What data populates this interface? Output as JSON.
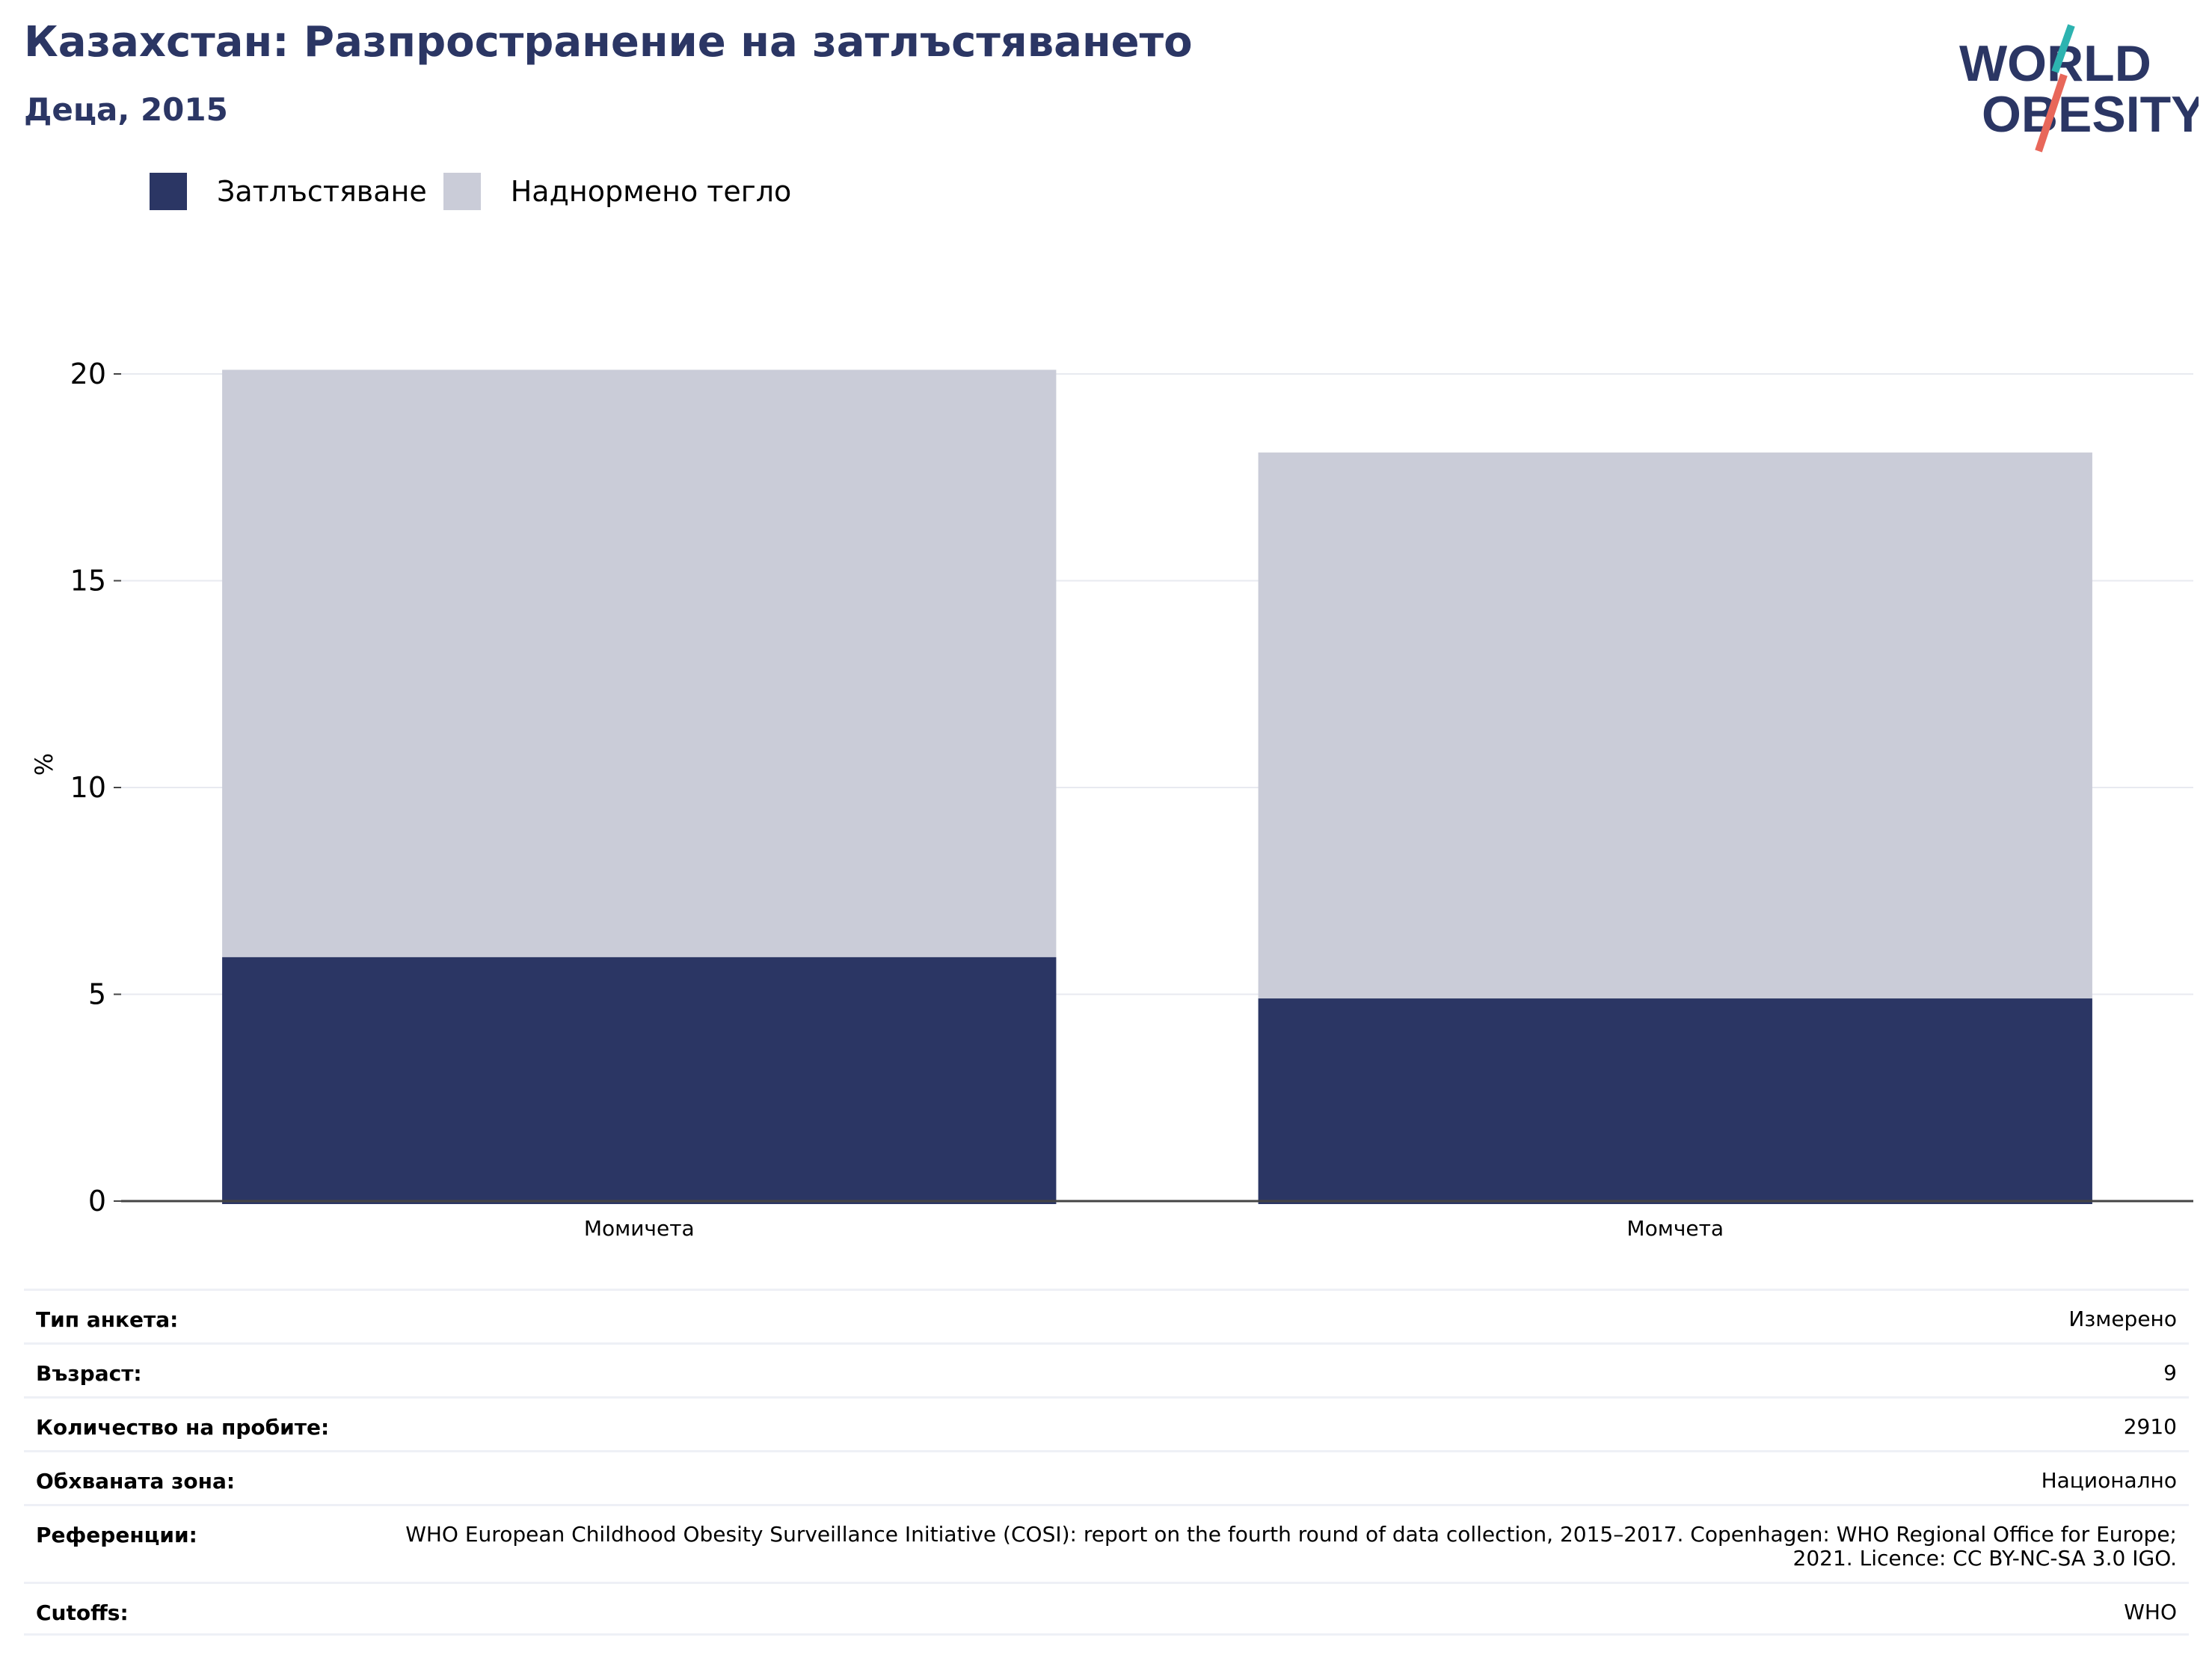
{
  "header": {
    "title": "Казахстан: Разпространение на затлъстяването",
    "subtitle": "Деца, 2015"
  },
  "logo": {
    "line1": "WORLD",
    "line2": "OBESITY"
  },
  "colors": {
    "obesity": "#2b3664",
    "overweight": "#caccd8",
    "title": "#2b3664",
    "logo_teal": "#2db3b0",
    "logo_coral": "#e8675a",
    "grid": "#e8eaf0"
  },
  "legend": {
    "obesity": "Затлъстяване",
    "overweight": "Наднормено тегло"
  },
  "chart_data": {
    "type": "bar",
    "stacked": true,
    "categories": [
      "Момичета",
      "Момчета"
    ],
    "series": [
      {
        "name": "Затлъстяване",
        "values": [
          5.9,
          4.9
        ]
      },
      {
        "name": "Наднормено тегло",
        "values": [
          14.2,
          13.2
        ]
      }
    ],
    "totals": [
      20.1,
      18.1
    ],
    "ylabel": "%",
    "ylim": [
      0,
      20
    ],
    "yticks": [
      0,
      5,
      10,
      15,
      20
    ],
    "grid": true,
    "legend_position": "top-left"
  },
  "meta": [
    {
      "label": "Тип анкета:",
      "value": "Измерено"
    },
    {
      "label": "Възраст:",
      "value": "9"
    },
    {
      "label": "Количество на пробите:",
      "value": "2910"
    },
    {
      "label": "Обхваната зона:",
      "value": "Национално"
    },
    {
      "label": "Референции:",
      "value": "WHO European Childhood Obesity Surveillance Initiative (COSI): report on the fourth round of data collection, 2015–2017. Copenhagen: WHO Regional Office for Europe; 2021. Licence: CC BY-NC-SA 3.0 IGO."
    },
    {
      "label": "Cutoffs:",
      "value": "WHO"
    }
  ]
}
